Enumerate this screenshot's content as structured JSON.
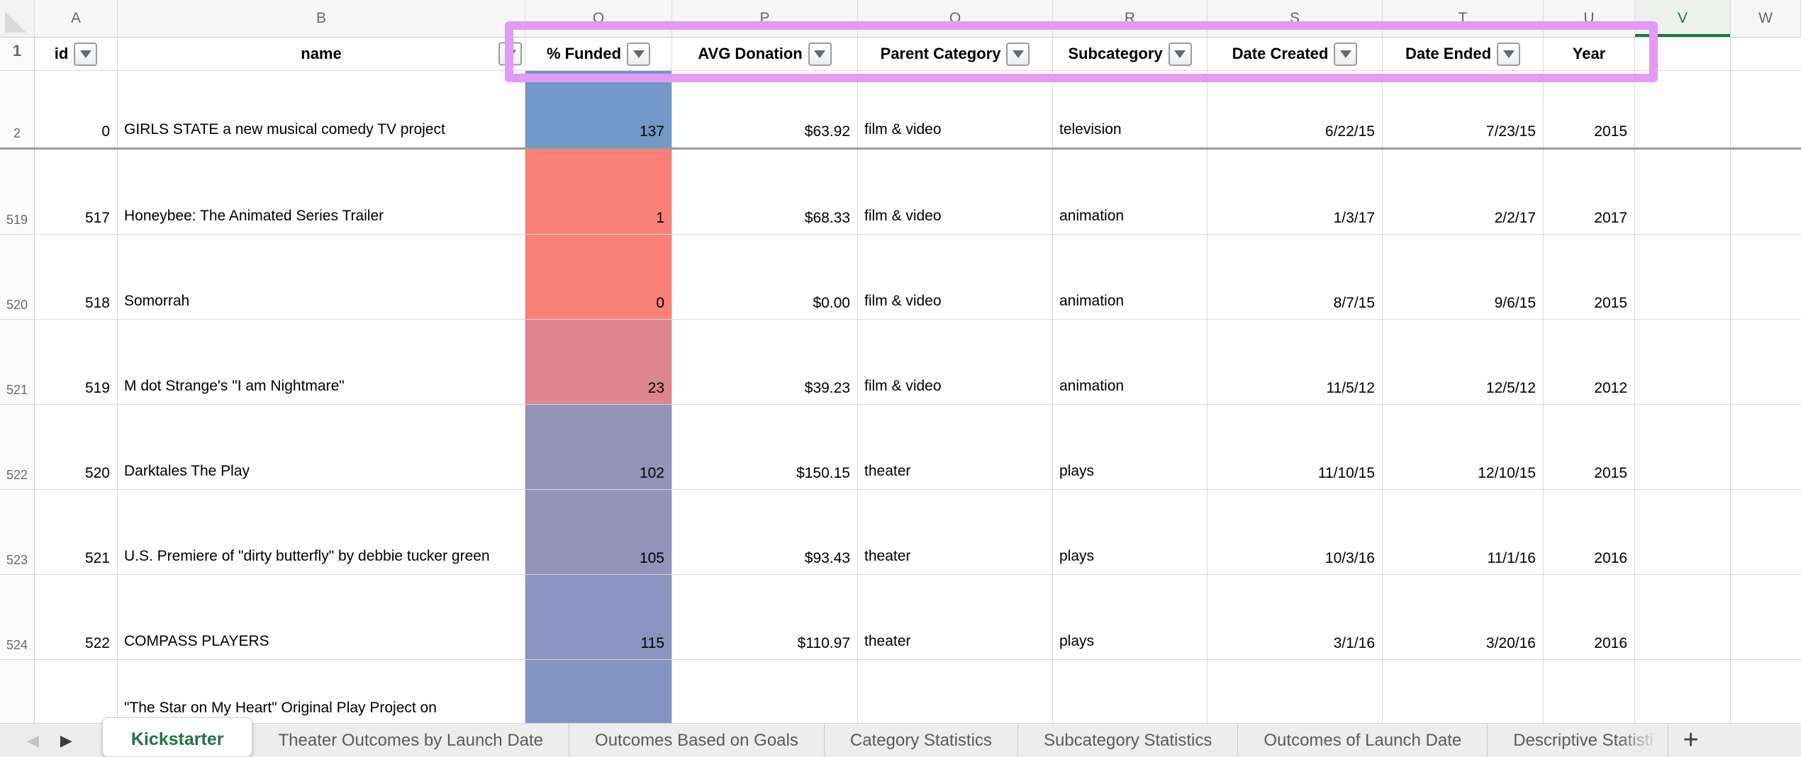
{
  "sheet": {
    "col_letters": [
      "A",
      "B",
      "O",
      "P",
      "Q",
      "R",
      "S",
      "T",
      "U",
      "V",
      "W"
    ],
    "row1_number": "1",
    "headers": {
      "id": "id",
      "name": "name",
      "funded": "% Funded",
      "avg": "AVG Donation",
      "parent": "Parent Category",
      "sub": "Subcategory",
      "created": "Date Created",
      "ended": "Date Ended",
      "year": "Year"
    },
    "selected_column": "V",
    "accent_green": "#217346",
    "annotation_color": "#e29af3",
    "rows": [
      {
        "num": "2",
        "id": "0",
        "name": "GIRLS STATE a new musical comedy TV project",
        "funded": "137",
        "funded_color": "#7397c8",
        "avg": "$63.92",
        "parent": "film & video",
        "sub": "television",
        "created": "6/22/15",
        "ended": "7/23/15",
        "year": "2015",
        "divider_below": true
      },
      {
        "num": "519",
        "id": "517",
        "name": "Honeybee: The Animated Series Trailer",
        "funded": "1",
        "funded_color": "#f98076",
        "avg": "$68.33",
        "parent": "film & video",
        "sub": "animation",
        "created": "1/3/17",
        "ended": "2/2/17",
        "year": "2017"
      },
      {
        "num": "520",
        "id": "518",
        "name": "Somorrah",
        "funded": "0",
        "funded_color": "#f98076",
        "avg": "$0.00",
        "parent": "film & video",
        "sub": "animation",
        "created": "8/7/15",
        "ended": "9/6/15",
        "year": "2015"
      },
      {
        "num": "521",
        "id": "519",
        "name": "M dot Strange's \"I am Nightmare\"",
        "funded": "23",
        "funded_color": "#dd858d",
        "avg": "$39.23",
        "parent": "film & video",
        "sub": "animation",
        "created": "11/5/12",
        "ended": "12/5/12",
        "year": "2012"
      },
      {
        "num": "522",
        "id": "520",
        "name": "Darktales The Play",
        "funded": "102",
        "funded_color": "#9193b9",
        "avg": "$150.15",
        "parent": "theater",
        "sub": "plays",
        "created": "11/10/15",
        "ended": "12/10/15",
        "year": "2015"
      },
      {
        "num": "523",
        "id": "521",
        "name": "U.S. Premiere of \"dirty butterfly\" by debbie tucker green",
        "funded": "105",
        "funded_color": "#9193b9",
        "avg": "$93.43",
        "parent": "theater",
        "sub": "plays",
        "created": "10/3/16",
        "ended": "11/1/16",
        "year": "2016"
      },
      {
        "num": "524",
        "id": "522",
        "name": "COMPASS PLAYERS",
        "funded": "115",
        "funded_color": "#8995c0",
        "avg": "$110.97",
        "parent": "theater",
        "sub": "plays",
        "created": "3/1/16",
        "ended": "3/20/16",
        "year": "2016"
      },
      {
        "num": "",
        "id": "",
        "name": "\"The Star on My Heart\" Original Play Project on",
        "funded": "",
        "funded_color": "#8494c4",
        "avg": "",
        "parent": "",
        "sub": "",
        "created": "",
        "ended": "",
        "year": "",
        "partial": true
      }
    ]
  },
  "sheet_tabs": {
    "active": "Kickstarter",
    "items": [
      "Theater Outcomes by Launch Date",
      "Outcomes Based on Goals",
      "Category Statistics",
      "Subcategory Statistics",
      "Outcomes of Launch Date",
      "Descriptive Statisti"
    ],
    "add_label": "+"
  }
}
